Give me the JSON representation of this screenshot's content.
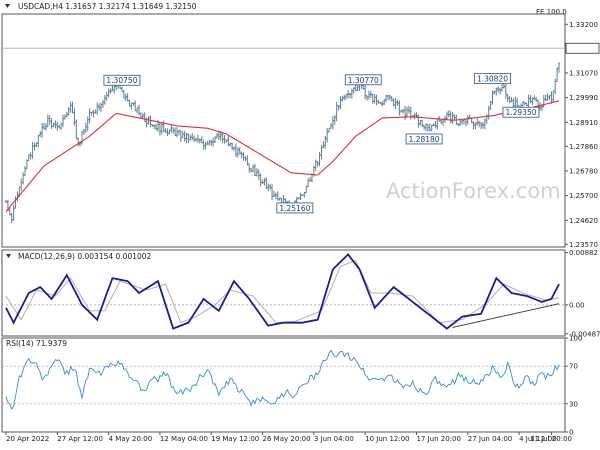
{
  "colors": {
    "price": "#5a7f96",
    "ma": "#e03030",
    "macd": "#1a1a9a",
    "signal": "#b0b0b0",
    "rsi": "#2f8ee0",
    "ref": "#cc3b3b",
    "frame": "#555555",
    "grid": "#9a9a9a",
    "label_border": "#2b4f9a"
  },
  "chart_data": [
    {
      "type": "candlestick",
      "header": "USDCAD,H4  1.31657 1.32174 1.31649 1.32150",
      "fe_label": "FE 100.0",
      "watermark": "ActionForex.com",
      "ylim": [
        1.2345,
        1.3365
      ],
      "yticks": [
        "1.33200",
        "1.32150",
        "1.31070",
        "1.29990",
        "1.28910",
        "1.27860",
        "1.26780",
        "1.25700",
        "1.24620",
        "1.23570"
      ],
      "ytick_values": [
        1.332,
        1.3215,
        1.3107,
        1.2999,
        1.2891,
        1.2786,
        1.2678,
        1.257,
        1.2462,
        1.2357
      ],
      "current_price": 1.3215,
      "fe_level": 1.3215,
      "price_path": [
        [
          0,
          1.2545
        ],
        [
          3,
          1.247
        ],
        [
          7,
          1.262
        ],
        [
          14,
          1.278
        ],
        [
          22,
          1.29
        ],
        [
          27,
          1.286
        ],
        [
          34,
          1.296
        ],
        [
          38,
          1.279
        ],
        [
          44,
          1.292
        ],
        [
          52,
          1.3
        ],
        [
          58,
          1.306
        ],
        [
          62,
          1.3005
        ],
        [
          68,
          1.295
        ],
        [
          74,
          1.29
        ],
        [
          80,
          1.287
        ],
        [
          88,
          1.285
        ],
        [
          96,
          1.282
        ],
        [
          104,
          1.28
        ],
        [
          112,
          1.283
        ],
        [
          118,
          1.279
        ],
        [
          126,
          1.272
        ],
        [
          134,
          1.264
        ],
        [
          142,
          1.256
        ],
        [
          150,
          1.252
        ],
        [
          156,
          1.258
        ],
        [
          162,
          1.268
        ],
        [
          168,
          1.282
        ],
        [
          174,
          1.295
        ],
        [
          180,
          1.302
        ],
        [
          186,
          1.306
        ],
        [
          190,
          1.301
        ],
        [
          196,
          1.298
        ],
        [
          202,
          1.3
        ],
        [
          208,
          1.294
        ],
        [
          214,
          1.292
        ],
        [
          222,
          1.286
        ],
        [
          226,
          1.289
        ],
        [
          232,
          1.292
        ],
        [
          238,
          1.289
        ],
        [
          244,
          1.29
        ],
        [
          248,
          1.288
        ],
        [
          252,
          1.29
        ],
        [
          256,
          1.302
        ],
        [
          262,
          1.304
        ],
        [
          266,
          1.298
        ],
        [
          270,
          1.296
        ],
        [
          276,
          1.299
        ],
        [
          282,
          1.297
        ],
        [
          287,
          1.3
        ],
        [
          291,
          1.3165
        ]
      ],
      "ma_path": [
        [
          0,
          1.25
        ],
        [
          20,
          1.27
        ],
        [
          44,
          1.283
        ],
        [
          58,
          1.293
        ],
        [
          70,
          1.291
        ],
        [
          90,
          1.2875
        ],
        [
          106,
          1.2865
        ],
        [
          116,
          1.284
        ],
        [
          134,
          1.275
        ],
        [
          150,
          1.267
        ],
        [
          164,
          1.266
        ],
        [
          172,
          1.272
        ],
        [
          184,
          1.283
        ],
        [
          198,
          1.291
        ],
        [
          214,
          1.2915
        ],
        [
          236,
          1.29
        ],
        [
          256,
          1.292
        ],
        [
          274,
          1.295
        ],
        [
          291,
          1.2985
        ]
      ],
      "annotations": [
        {
          "text": "1.30750",
          "x": 61,
          "y": 1.3075
        },
        {
          "text": "1.30770",
          "x": 188,
          "y": 1.3077
        },
        {
          "text": "1.30820",
          "x": 256,
          "y": 1.3082
        },
        {
          "text": "1.29350",
          "x": 271,
          "y": 1.2935
        },
        {
          "text": "1.28180",
          "x": 220,
          "y": 1.2818
        },
        {
          "text": "1.25160",
          "x": 152,
          "y": 1.2516
        }
      ],
      "x_count": 292,
      "xlabels": [
        "20 Apr 2022",
        "27 Apr 12:00",
        "4 May 20:00",
        "12 May 04:00",
        "19 May 12:00",
        "26 May 20:00",
        "3 Jun 04:00",
        "10 Jun 12:00",
        "17 Jun 20:00",
        "27 Jun 04:00",
        "4 Jul 12:00",
        "11 Jul 20:00"
      ],
      "xlabel_x": [
        0,
        27,
        54,
        81,
        108,
        135,
        162,
        189,
        216,
        243,
        270,
        287
      ]
    },
    {
      "type": "line",
      "header": "MACD(12,26,9) 0.003154 0.001002",
      "ylim": [
        -0.00525,
        0.00925
      ],
      "yticks": [
        "0.00882",
        "0.00",
        "-0.004872"
      ],
      "ytick_values": [
        0.00882,
        0.0,
        -0.004872
      ],
      "zero_line": 0.0,
      "trendline": [
        [
          235,
          -0.0038
        ],
        [
          291,
          0.0002
        ]
      ],
      "series": [
        {
          "role": "macd",
          "points": [
            [
              0,
              -0.0005
            ],
            [
              4,
              -0.003
            ],
            [
              12,
              0.002
            ],
            [
              18,
              0.003
            ],
            [
              24,
              0.001
            ],
            [
              32,
              0.005
            ],
            [
              40,
              0.0
            ],
            [
              48,
              -0.0025
            ],
            [
              56,
              0.0045
            ],
            [
              64,
              0.004
            ],
            [
              70,
              0.002
            ],
            [
              80,
              0.004
            ],
            [
              88,
              -0.004
            ],
            [
              96,
              -0.003
            ],
            [
              104,
              0.001
            ],
            [
              112,
              -0.001
            ],
            [
              120,
              0.004
            ],
            [
              128,
              0.001
            ],
            [
              138,
              -0.0035
            ],
            [
              146,
              -0.003
            ],
            [
              156,
              -0.003
            ],
            [
              164,
              -0.0025
            ],
            [
              172,
              0.006
            ],
            [
              180,
              0.0085
            ],
            [
              186,
              0.006
            ],
            [
              194,
              -0.0005
            ],
            [
              204,
              0.003
            ],
            [
              212,
              0.001
            ],
            [
              224,
              -0.002
            ],
            [
              232,
              -0.004
            ],
            [
              240,
              -0.002
            ],
            [
              250,
              -0.0015
            ],
            [
              258,
              0.0045
            ],
            [
              266,
              0.002
            ],
            [
              274,
              0.0015
            ],
            [
              282,
              0.0005
            ],
            [
              287,
              0.001
            ],
            [
              291,
              0.0035
            ]
          ]
        },
        {
          "role": "signal",
          "points": [
            [
              0,
              0.0015
            ],
            [
              8,
              -0.0025
            ],
            [
              16,
              0.0025
            ],
            [
              26,
              0.0015
            ],
            [
              34,
              0.0045
            ],
            [
              44,
              -0.001
            ],
            [
              52,
              -0.001
            ],
            [
              60,
              0.004
            ],
            [
              74,
              0.0025
            ],
            [
              84,
              0.0035
            ],
            [
              92,
              -0.003
            ],
            [
              100,
              -0.002
            ],
            [
              110,
              0.0
            ],
            [
              118,
              0.0025
            ],
            [
              130,
              0.0015
            ],
            [
              142,
              -0.003
            ],
            [
              152,
              -0.0028
            ],
            [
              166,
              -0.001
            ],
            [
              176,
              0.0065
            ],
            [
              184,
              0.0075
            ],
            [
              192,
              0.002
            ],
            [
              202,
              0.002
            ],
            [
              214,
              0.0015
            ],
            [
              228,
              -0.003
            ],
            [
              240,
              -0.0025
            ],
            [
              252,
              0.0
            ],
            [
              262,
              0.0035
            ],
            [
              272,
              0.002
            ],
            [
              284,
              0.0008
            ],
            [
              291,
              0.0012
            ]
          ]
        }
      ]
    },
    {
      "type": "line",
      "header": "RSI(14) 71.9379",
      "ylim": [
        0,
        100
      ],
      "yticks": [
        "100",
        "70",
        "30",
        "0"
      ],
      "ytick_values": [
        100,
        70,
        30,
        0
      ],
      "reference_lines": [
        70,
        30
      ],
      "series": [
        {
          "role": "rsi",
          "points": [
            [
              0,
              40
            ],
            [
              3,
              22
            ],
            [
              7,
              58
            ],
            [
              12,
              78
            ],
            [
              16,
              70
            ],
            [
              20,
              55
            ],
            [
              24,
              72
            ],
            [
              28,
              75
            ],
            [
              32,
              62
            ],
            [
              36,
              70
            ],
            [
              40,
              38
            ],
            [
              44,
              66
            ],
            [
              50,
              62
            ],
            [
              56,
              75
            ],
            [
              60,
              72
            ],
            [
              66,
              58
            ],
            [
              72,
              45
            ],
            [
              78,
              55
            ],
            [
              84,
              62
            ],
            [
              90,
              40
            ],
            [
              96,
              45
            ],
            [
              100,
              52
            ],
            [
              106,
              68
            ],
            [
              112,
              40
            ],
            [
              118,
              55
            ],
            [
              124,
              42
            ],
            [
              130,
              30
            ],
            [
              136,
              35
            ],
            [
              142,
              32
            ],
            [
              148,
              45
            ],
            [
              152,
              38
            ],
            [
              158,
              55
            ],
            [
              164,
              60
            ],
            [
              168,
              78
            ],
            [
              172,
              85
            ],
            [
              178,
              82
            ],
            [
              184,
              78
            ],
            [
              190,
              58
            ],
            [
              196,
              55
            ],
            [
              202,
              60
            ],
            [
              208,
              48
            ],
            [
              214,
              52
            ],
            [
              220,
              40
            ],
            [
              226,
              55
            ],
            [
              232,
              45
            ],
            [
              238,
              60
            ],
            [
              244,
              55
            ],
            [
              250,
              52
            ],
            [
              256,
              68
            ],
            [
              260,
              58
            ],
            [
              264,
              72
            ],
            [
              268,
              45
            ],
            [
              274,
              58
            ],
            [
              278,
              52
            ],
            [
              282,
              62
            ],
            [
              286,
              58
            ],
            [
              291,
              72
            ]
          ]
        }
      ]
    }
  ]
}
